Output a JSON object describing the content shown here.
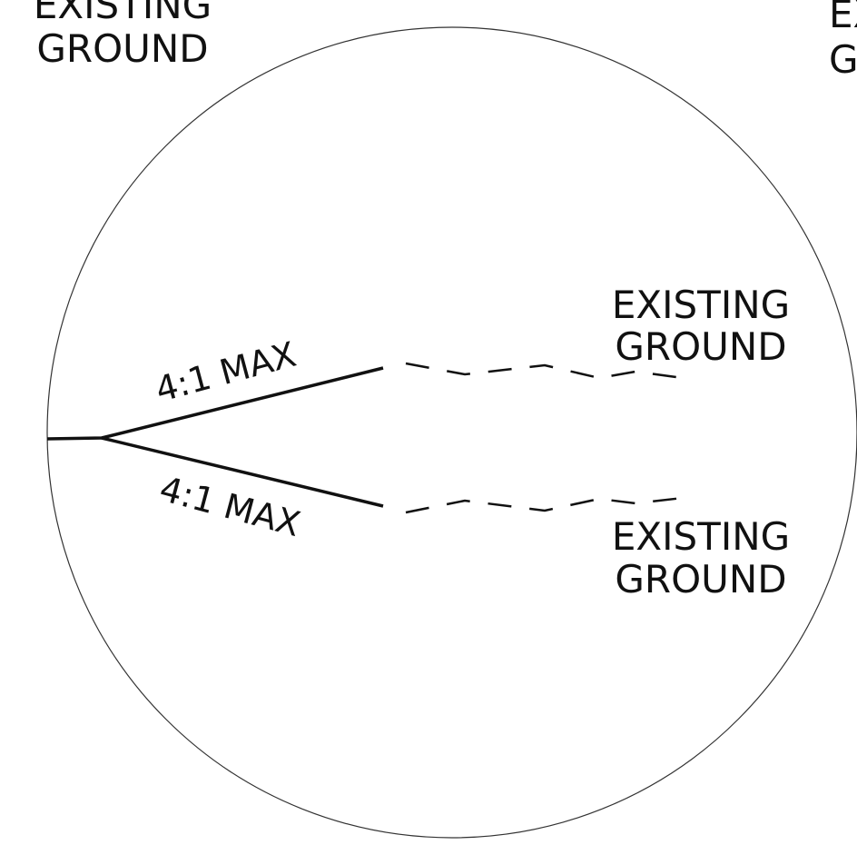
{
  "labels": [
    {
      "lines": [
        "EXISTING",
        "GROUND"
      ]
    },
    {
      "lines": [
        "EXISTING",
        "GROUND"
      ]
    },
    {
      "lines": [
        "EXISTING",
        "GROUND"
      ]
    },
    {
      "lines": [
        "EXISTING",
        "GROUND"
      ]
    }
  ],
  "slopes": [
    {
      "text": "4:1 MAX"
    },
    {
      "text": "4:1 MAX"
    }
  ]
}
